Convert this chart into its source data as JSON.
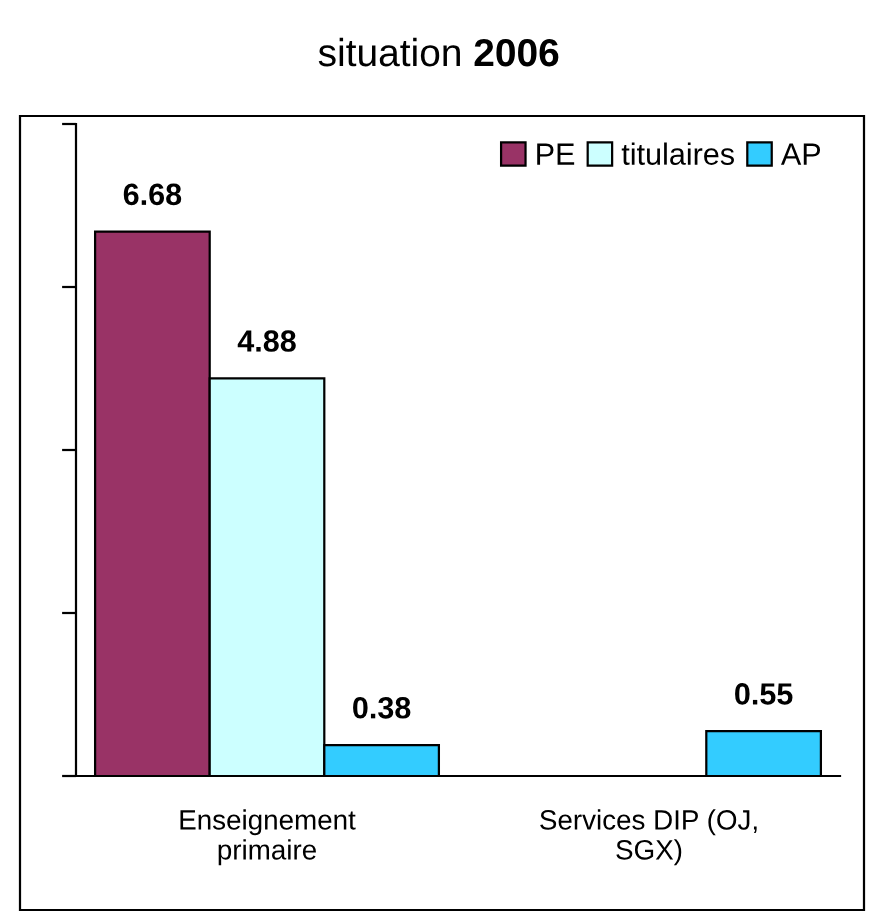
{
  "chart_data": {
    "type": "bar",
    "title": "situation 2006",
    "categories": [
      "Enseignement\nprimaire",
      "Services DIP (OJ,\nSGX)"
    ],
    "series": [
      {
        "name": "PE",
        "color": "#993366",
        "values": [
          6.68,
          null
        ]
      },
      {
        "name": "titulaires",
        "color": "#ccffff",
        "values": [
          4.88,
          null
        ]
      },
      {
        "name": "AP",
        "color": "#33ccff",
        "values": [
          0.38,
          0.55
        ]
      }
    ],
    "ylim": [
      0,
      8
    ],
    "yticks": [
      {
        "value": 0,
        "label": null
      },
      {
        "value": 2,
        "label": null
      },
      {
        "value": 4,
        "label": null
      },
      {
        "value": 6,
        "label": null
      },
      {
        "value": 8,
        "label": null
      }
    ],
    "data_labels": true,
    "legend": "top right",
    "grid": false,
    "tick_labels": "x"
  }
}
